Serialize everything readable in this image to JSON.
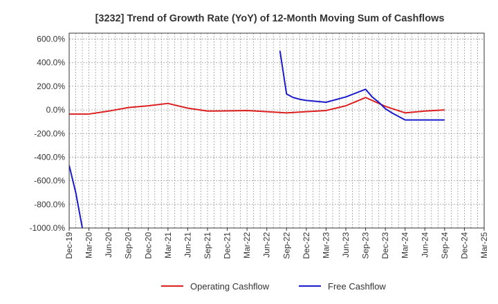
{
  "chart_data": {
    "type": "line",
    "title": "[3232]  Trend of Growth Rate (YoY) of 12-Month Moving Sum of Cashflows",
    "xlabel": "",
    "ylabel": "",
    "ylim": [
      -1000,
      650
    ],
    "y_ticks": [
      600,
      400,
      200,
      0,
      -200,
      -400,
      -600,
      -800,
      -1000
    ],
    "y_tick_labels": [
      "600.0%",
      "400.0%",
      "200.0%",
      "0.0%",
      "-200.0%",
      "-400.0%",
      "-600.0%",
      "-800.0%",
      "-1000.0%"
    ],
    "x_tick_labels": [
      "Dec-19",
      "Mar-20",
      "Jun-20",
      "Sep-20",
      "Dec-20",
      "Mar-21",
      "Jun-21",
      "Sep-21",
      "Dec-21",
      "Mar-22",
      "Jun-22",
      "Sep-22",
      "Dec-22",
      "Mar-23",
      "Jun-23",
      "Sep-23",
      "Dec-23",
      "Mar-24",
      "Jun-24",
      "Sep-24",
      "Dec-24",
      "Mar-25"
    ],
    "grid": true,
    "legend_position": "bottom-center",
    "series": [
      {
        "name": "Operating Cashflow",
        "color": "#dd1e1e",
        "x": [
          "Dec-19",
          "Mar-20",
          "Jun-20",
          "Sep-20",
          "Dec-20",
          "Mar-21",
          "Jun-21",
          "Sep-21",
          "Dec-21",
          "Mar-22",
          "Jun-22",
          "Sep-22",
          "Dec-22",
          "Mar-23",
          "Jun-23",
          "Sep-23",
          "Dec-23",
          "Mar-24",
          "Jun-24",
          "Sep-24"
        ],
        "values": [
          -35,
          -35,
          -10,
          20,
          35,
          55,
          15,
          -10,
          -8,
          -5,
          -15,
          -25,
          -15,
          -5,
          35,
          105,
          30,
          -25,
          -10,
          0
        ]
      },
      {
        "name": "Free Cashflow",
        "color": "#1a1acc",
        "x": [
          "Dec-19",
          "Jan-20",
          "Feb-20",
          "Mar-20",
          "Aug-22",
          "Sep-22",
          "Oct-22",
          "Nov-22",
          "Dec-22",
          "Mar-23",
          "Jun-23",
          "Sep-23",
          "Oct-23",
          "Nov-23",
          "Dec-23",
          "Jan-24",
          "Feb-24",
          "Mar-24",
          "Jun-24",
          "Sep-24"
        ],
        "values": [
          -470,
          -700,
          -1000,
          null,
          500,
          135,
          105,
          90,
          80,
          65,
          110,
          175,
          110,
          65,
          10,
          -25,
          -55,
          -85,
          -85,
          -85
        ]
      }
    ]
  }
}
